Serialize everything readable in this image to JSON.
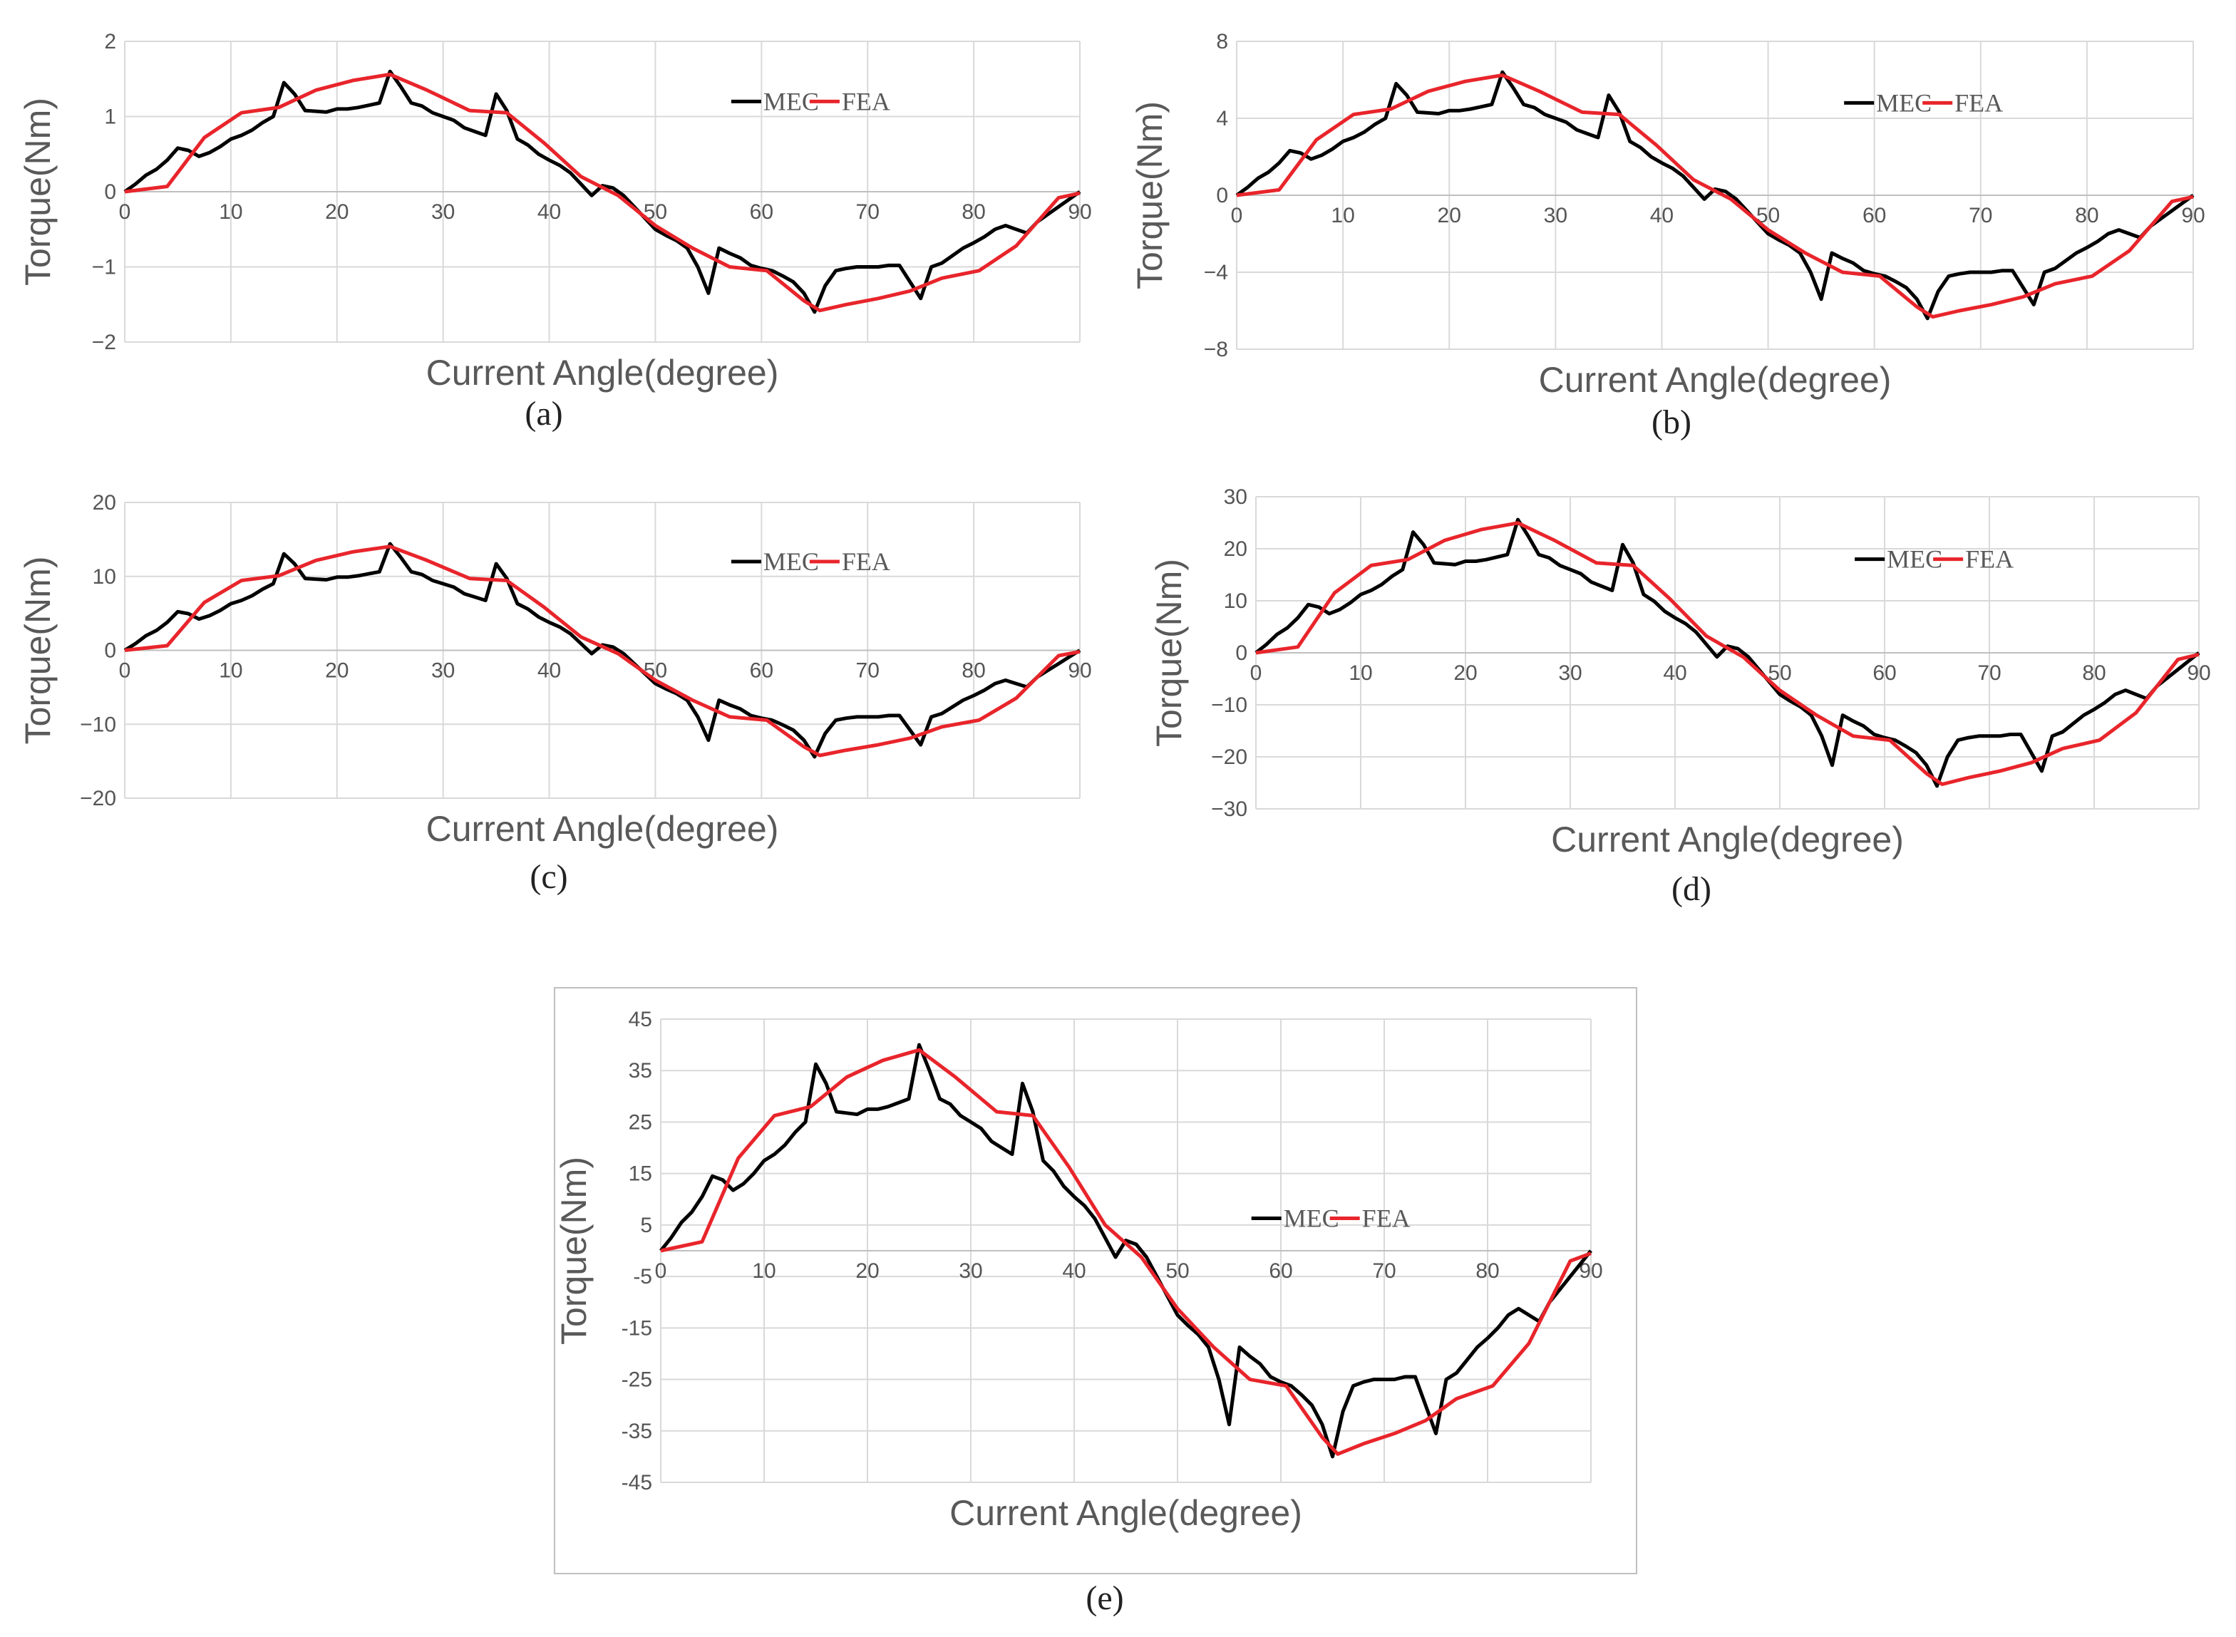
{
  "chart_data": [
    {
      "id": "a",
      "type": "line",
      "caption": "(a)",
      "xlabel": "Current Angle(degree)",
      "ylabel": "Torque(Nm)",
      "xlim": [
        0,
        90
      ],
      "ylim": [
        -2,
        2
      ],
      "xticks": [
        "0",
        "10",
        "20",
        "30",
        "40",
        "50",
        "60",
        "70",
        "80",
        "90"
      ],
      "yticks": [
        "2",
        "1",
        "0",
        "−1",
        "−2"
      ],
      "legend": {
        "position": "top-right",
        "entries": [
          "MEC",
          "FEA"
        ]
      },
      "series": [
        {
          "name": "MEC",
          "color": "#000000",
          "scale": 1.0
        },
        {
          "name": "FEA",
          "color": "#e8252b",
          "scale": 1.0
        }
      ]
    },
    {
      "id": "b",
      "type": "line",
      "caption": "(b)",
      "xlabel": "Current Angle(degree)",
      "ylabel": "Torque(Nm)",
      "xlim": [
        0,
        90
      ],
      "ylim": [
        -8,
        8
      ],
      "xticks": [
        "0",
        "10",
        "20",
        "30",
        "40",
        "50",
        "60",
        "70",
        "80",
        "90"
      ],
      "yticks": [
        "8",
        "4",
        "0",
        "−4",
        "−8"
      ],
      "legend": {
        "position": "top-right",
        "entries": [
          "MEC",
          "FEA"
        ]
      },
      "series": [
        {
          "name": "MEC",
          "color": "#000000",
          "scale": 4.0
        },
        {
          "name": "FEA",
          "color": "#e8252b",
          "scale": 4.0
        }
      ]
    },
    {
      "id": "c",
      "type": "line",
      "caption": "(c)",
      "xlabel": "Current Angle(degree)",
      "ylabel": "Torque(Nm)",
      "xlim": [
        0,
        90
      ],
      "ylim": [
        -20,
        20
      ],
      "xticks": [
        "0",
        "10",
        "20",
        "30",
        "40",
        "50",
        "60",
        "70",
        "80",
        "90"
      ],
      "yticks": [
        "20",
        "10",
        "0",
        "−10",
        "−20"
      ],
      "legend": {
        "position": "top-right",
        "entries": [
          "MEC",
          "FEA"
        ]
      },
      "series": [
        {
          "name": "MEC",
          "color": "#000000",
          "scale": 9.0
        },
        {
          "name": "FEA",
          "color": "#e8252b",
          "scale": 9.0
        }
      ]
    },
    {
      "id": "d",
      "type": "line",
      "caption": "(d)",
      "xlabel": "Current Angle(degree)",
      "ylabel": "Torque(Nm)",
      "xlim": [
        0,
        90
      ],
      "ylim": [
        -30,
        30
      ],
      "xticks": [
        "0",
        "10",
        "20",
        "30",
        "40",
        "50",
        "60",
        "70",
        "80",
        "90"
      ],
      "yticks": [
        "30",
        "20",
        "10",
        "0",
        "−10",
        "−20",
        "−30"
      ],
      "legend": {
        "position": "top-right",
        "entries": [
          "MEC",
          "FEA"
        ]
      },
      "series": [
        {
          "name": "MEC",
          "color": "#000000",
          "scale": 16.0
        },
        {
          "name": "FEA",
          "color": "#e8252b",
          "scale": 16.0
        }
      ]
    },
    {
      "id": "e",
      "type": "line",
      "caption": "(e)",
      "xlabel": "Current Angle(degree)",
      "ylabel": "Torque(Nm)",
      "xlim": [
        0,
        90
      ],
      "ylim": [
        -45,
        45
      ],
      "xticks": [
        "0",
        "10",
        "20",
        "30",
        "40",
        "50",
        "60",
        "70",
        "80",
        "90"
      ],
      "yticks": [
        "45",
        "35",
        "25",
        "15",
        "5",
        "-5",
        "-15",
        "-25",
        "-35",
        "-45"
      ],
      "legend": {
        "position": "right",
        "entries": [
          "MEC",
          "FEA"
        ]
      },
      "series": [
        {
          "name": "MEC",
          "color": "#000000",
          "scale": 25.0
        },
        {
          "name": "FEA",
          "color": "#e8252b",
          "scale": 25.0
        }
      ]
    }
  ],
  "base_curves": {
    "x": [
      0,
      1,
      2,
      3,
      4,
      5,
      6,
      7,
      8,
      9,
      10,
      11,
      12,
      13,
      14,
      15,
      16,
      17,
      18,
      19,
      20,
      21,
      22,
      23,
      24,
      25,
      26,
      27,
      28,
      29,
      30,
      31,
      32,
      33,
      34,
      35,
      36,
      37,
      38,
      39,
      40,
      41,
      42,
      43,
      44,
      45,
      46,
      47,
      48,
      49,
      50,
      51,
      52,
      53,
      54,
      55,
      56,
      57,
      58,
      59,
      60,
      61,
      62,
      63,
      64,
      65,
      66,
      67,
      68,
      69,
      70,
      71,
      72,
      73,
      74,
      75,
      76,
      77,
      78,
      79,
      80,
      81,
      82,
      83,
      84,
      85,
      86,
      87,
      88,
      89,
      90
    ],
    "MEC": [
      0,
      0.1,
      0.22,
      0.3,
      0.42,
      0.58,
      0.55,
      0.47,
      0.52,
      0.6,
      0.7,
      0.75,
      0.82,
      0.92,
      1.0,
      1.45,
      1.3,
      1.08,
      1.07,
      1.06,
      1.1,
      1.1,
      1.12,
      1.15,
      1.18,
      1.6,
      1.4,
      1.18,
      1.14,
      1.05,
      1.0,
      0.95,
      0.85,
      0.8,
      0.75,
      1.3,
      1.08,
      0.7,
      0.62,
      0.5,
      0.42,
      0.35,
      0.25,
      0.1,
      -0.05,
      0.08,
      0.05,
      -0.05,
      -0.2,
      -0.35,
      -0.5,
      -0.58,
      -0.65,
      -0.75,
      -1.0,
      -1.35,
      -0.75,
      -0.82,
      -0.88,
      -0.98,
      -1.02,
      -1.05,
      -1.12,
      -1.2,
      -1.35,
      -1.6,
      -1.25,
      -1.05,
      -1.02,
      -1.0,
      -1.0,
      -1.0,
      -0.98,
      -0.98,
      -1.2,
      -1.42,
      -1.0,
      -0.95,
      -0.85,
      -0.75,
      -0.68,
      -0.6,
      -0.5,
      -0.45,
      -0.5,
      -0.55,
      -0.4,
      -0.3,
      -0.2,
      -0.1,
      0.0
    ],
    "FEA_x": [
      0,
      4,
      7.5,
      11,
      14.5,
      18,
      21.5,
      25,
      28.5,
      32.5,
      36,
      39.5,
      43,
      46.5,
      50,
      53.5,
      57,
      60.5,
      64,
      65.5,
      68,
      71,
      74,
      77,
      80.5,
      84,
      88,
      90
    ],
    "FEA": [
      0,
      0.07,
      0.72,
      1.05,
      1.12,
      1.35,
      1.48,
      1.56,
      1.35,
      1.08,
      1.05,
      0.65,
      0.2,
      -0.05,
      -0.45,
      -0.75,
      -1.0,
      -1.05,
      -1.45,
      -1.58,
      -1.5,
      -1.42,
      -1.32,
      -1.15,
      -1.05,
      -0.72,
      -0.08,
      -0.02
    ]
  }
}
